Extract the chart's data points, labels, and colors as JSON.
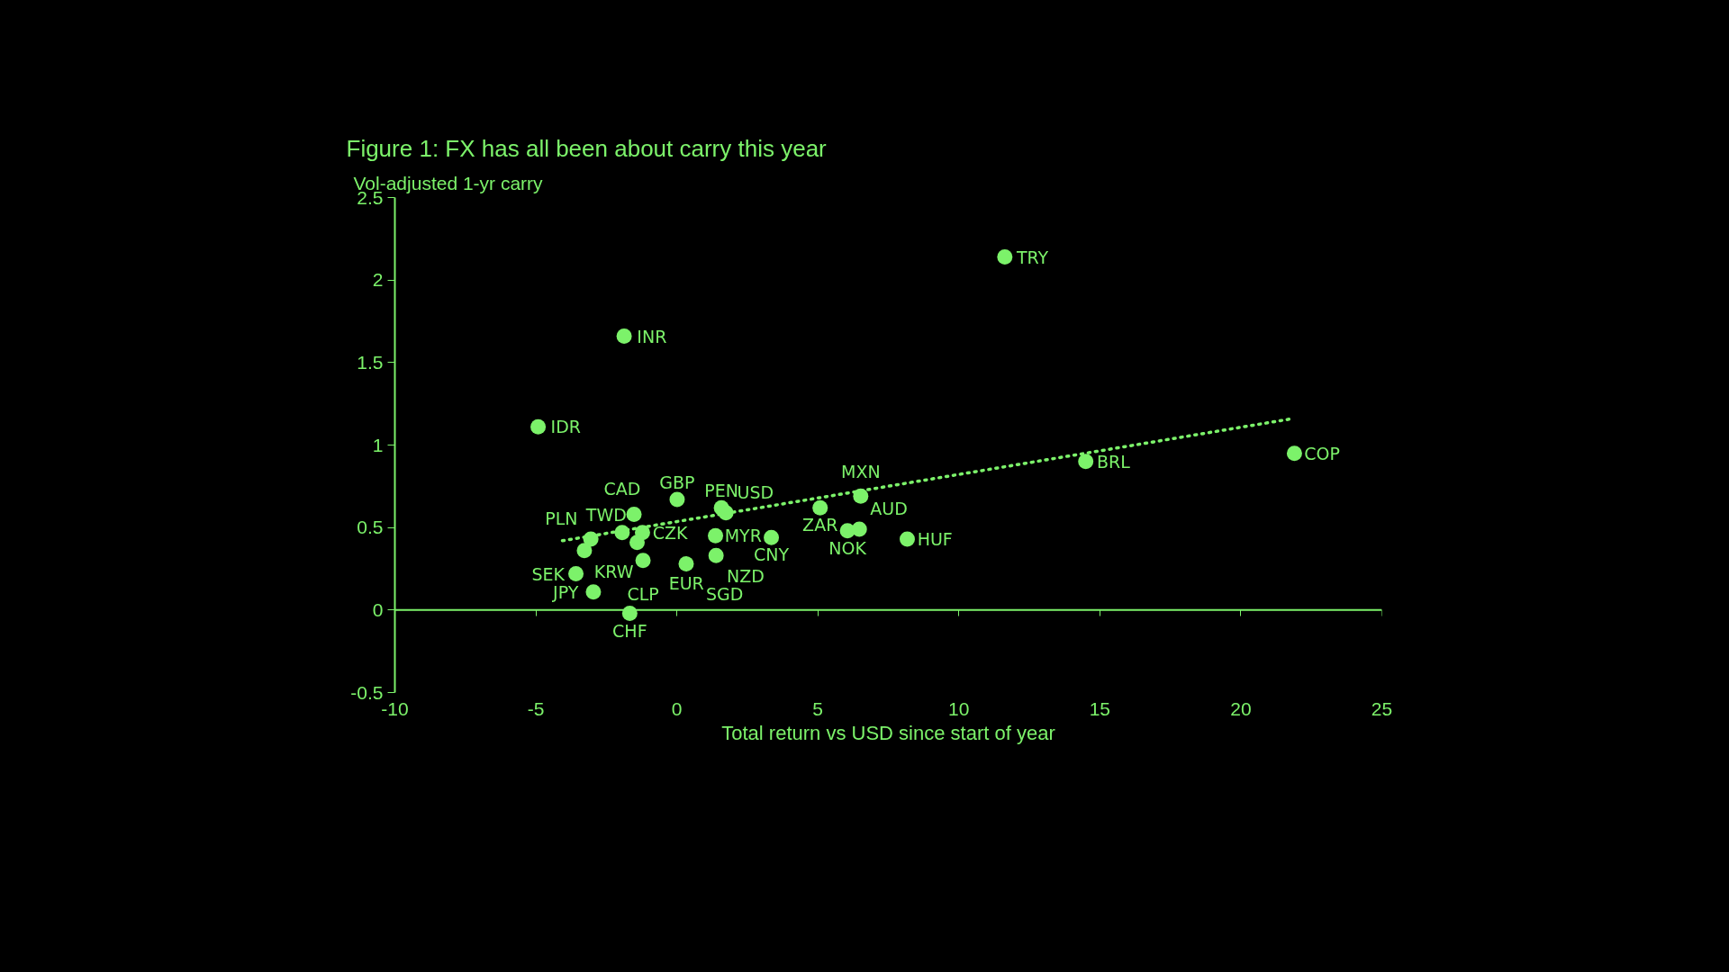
{
  "chart_data": {
    "type": "scatter",
    "title": "Figure 1: FX has all been about carry this year",
    "ylabel": "Vol-adjusted 1-yr carry",
    "xlabel": "Total return vs USD since start of year",
    "xlim": [
      -10,
      25
    ],
    "xticks": [
      -10,
      -5,
      0,
      5,
      10,
      15,
      20,
      25
    ],
    "ylim": [
      -0.5,
      2.5
    ],
    "yticks": [
      -0.5,
      0,
      0.5,
      1,
      1.5,
      2,
      2.5
    ],
    "grid": false,
    "ref_lines": [
      {
        "axis": "y",
        "value": 0,
        "color": "#7cf26a"
      }
    ],
    "series": [
      {
        "color": "#7cf26a",
        "marker": "circle",
        "x": [
          11.63,
          -1.87,
          -4.92,
          21.9,
          14.5,
          6.52,
          5.08,
          1.58,
          0.01,
          -1.52,
          1.74,
          -1.94,
          -1.22,
          -3.05,
          6.05,
          6.47,
          1.37,
          -3.28,
          -1.41,
          8.17,
          3.35,
          1.39,
          -3.58,
          -1.2,
          0.33,
          -2.96,
          -1.67
        ],
        "values": [
          2.14,
          1.66,
          1.11,
          0.95,
          0.9,
          0.69,
          0.62,
          0.62,
          0.67,
          0.58,
          0.59,
          0.47,
          0.47,
          0.43,
          0.48,
          0.49,
          0.45,
          0.36,
          0.41,
          0.43,
          0.44,
          0.33,
          0.22,
          0.3,
          0.28,
          0.11,
          -0.02
        ]
      },
      {
        "type": "line",
        "color": "#7cf26a",
        "line_style": "dotted",
        "x": [
          -4.06,
          21.83
        ],
        "values": [
          0.42,
          1.16
        ]
      }
    ],
    "annotations": [
      {
        "text": "TRY",
        "x": 11.63,
        "y": 2.14
      },
      {
        "text": "INR",
        "x": -1.87,
        "y": 1.66
      },
      {
        "text": "IDR",
        "x": -4.92,
        "y": 1.11
      },
      {
        "text": "COP",
        "x": 21.9,
        "y": 0.95
      },
      {
        "text": "BRL",
        "x": 14.5,
        "y": 0.9
      },
      {
        "text": "MXN",
        "x": 6.52,
        "y": 0.69
      },
      {
        "text": "ZAR",
        "x": 5.08,
        "y": 0.62
      },
      {
        "text": "PEN",
        "x": 1.58,
        "y": 0.62
      },
      {
        "text": "GBP",
        "x": 0.01,
        "y": 0.67
      },
      {
        "text": "TWD",
        "x": -1.52,
        "y": 0.58
      },
      {
        "text": "USD",
        "x": 1.74,
        "y": 0.59
      },
      {
        "text": "CAD",
        "x": -1.94,
        "y": 0.47
      },
      {
        "text": "CZK",
        "x": -1.22,
        "y": 0.47
      },
      {
        "text": "PLN",
        "x": -3.05,
        "y": 0.43
      },
      {
        "text": "NOK",
        "x": 6.05,
        "y": 0.48
      },
      {
        "text": "AUD",
        "x": 6.47,
        "y": 0.49
      },
      {
        "text": "MYR",
        "x": 1.37,
        "y": 0.45
      },
      {
        "text": "KRW",
        "x": -3.28,
        "y": 0.36
      },
      {
        "text": "EUR",
        "x": -1.41,
        "y": 0.41
      },
      {
        "text": "HUF",
        "x": 8.17,
        "y": 0.43
      },
      {
        "text": "CNY",
        "x": 3.35,
        "y": 0.44
      },
      {
        "text": "NZD",
        "x": 1.39,
        "y": 0.33
      },
      {
        "text": "SEK",
        "x": -3.58,
        "y": 0.22
      },
      {
        "text": "CLP",
        "x": -1.2,
        "y": 0.3
      },
      {
        "text": "SGD",
        "x": 0.33,
        "y": 0.28
      },
      {
        "text": "JPY",
        "x": -2.96,
        "y": 0.11
      },
      {
        "text": "CHF",
        "x": -1.67,
        "y": -0.02
      }
    ]
  }
}
